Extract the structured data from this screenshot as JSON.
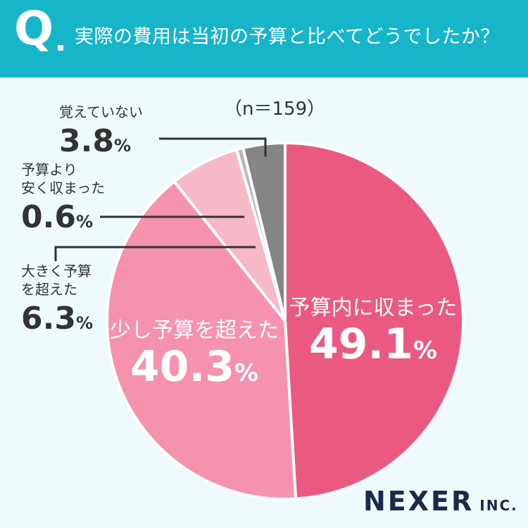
{
  "header": {
    "q_mark": "Q",
    "question": "実際の費用は当初の予算と比べてどうでしたか？"
  },
  "sample_label": "（n＝159）",
  "chart_data": {
    "type": "pie",
    "title": "",
    "slices": [
      {
        "label": "予算内に収まった",
        "value": 49.1,
        "display": "49.1",
        "color": "#ea5a80"
      },
      {
        "label": "少し予算を超えた",
        "value": 40.3,
        "display": "40.3",
        "color": "#f592ae"
      },
      {
        "label": "大きく予算を超えた",
        "value": 6.3,
        "display": "6.3",
        "color": "#f7b8c8"
      },
      {
        "label": "予算より安く収まった",
        "value": 0.6,
        "display": "0.6",
        "color": "#b8b8bc"
      },
      {
        "label": "覚えていない",
        "value": 3.8,
        "display": "3.8",
        "color": "#858587"
      }
    ],
    "unit": "%"
  },
  "labels": {
    "within": {
      "name": "予算内に収まった",
      "val": "49.1",
      "pct": "%"
    },
    "slightly_over": {
      "name": "少し予算を超えた",
      "val": "40.3",
      "pct": "%"
    },
    "greatly_over": {
      "line1": "大きく予算",
      "line2": "を超えた",
      "val": "6.3",
      "pct": "%"
    },
    "cheaper": {
      "line1": "予算より",
      "line2": "安く収まった",
      "val": "0.6",
      "pct": "%"
    },
    "dont_remember": {
      "name": "覚えていない",
      "val": "3.8",
      "pct": "%"
    }
  },
  "logo": {
    "main": "NEXER",
    "suffix": "INC."
  }
}
